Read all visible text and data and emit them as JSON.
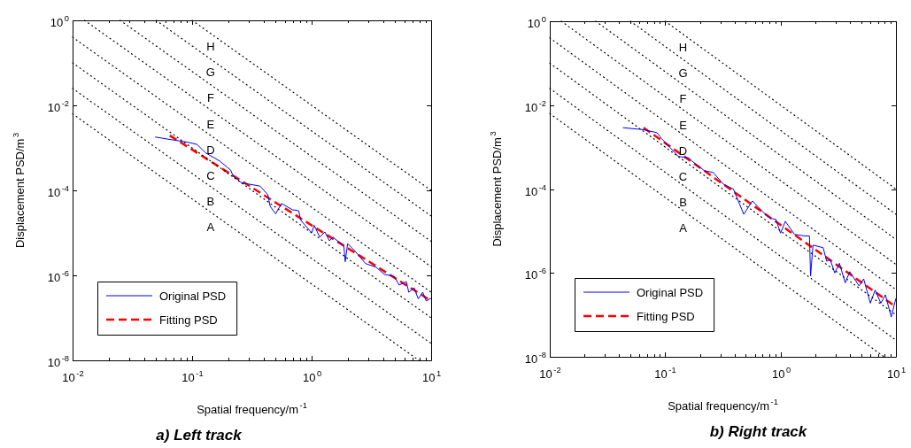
{
  "chart_data": [
    {
      "type": "line",
      "title": "a) Left track",
      "xlabel": "Spatial frequency/m$^{-1}$",
      "ylabel": "Displacement PSD/m$^{3}$",
      "log": "xy",
      "grid": false,
      "legend": "bottom left",
      "xlim": [
        0.01,
        10
      ],
      "ylim": [
        1e-08,
        1
      ],
      "xticks": [
        {
          "value": 0.01,
          "label": "10$^{-2}$"
        },
        {
          "value": 0.02,
          "label": null
        },
        {
          "value": 0.03,
          "label": null
        },
        {
          "value": 0.04,
          "label": null
        },
        {
          "value": 0.05,
          "label": null
        },
        {
          "value": 0.06,
          "label": null
        },
        {
          "value": 0.07,
          "label": null
        },
        {
          "value": 0.08,
          "label": null
        },
        {
          "value": 0.09,
          "label": null
        },
        {
          "value": 0.1,
          "label": "10$^{-1}$"
        },
        {
          "value": 0.2,
          "label": null
        },
        {
          "value": 0.3,
          "label": null
        },
        {
          "value": 0.4,
          "label": null
        },
        {
          "value": 0.5,
          "label": null
        },
        {
          "value": 0.6,
          "label": null
        },
        {
          "value": 0.7,
          "label": null
        },
        {
          "value": 0.8,
          "label": null
        },
        {
          "value": 0.9,
          "label": null
        },
        {
          "value": 1,
          "label": "10$^{0}$"
        },
        {
          "value": 2,
          "label": null
        },
        {
          "value": 3,
          "label": null
        },
        {
          "value": 4,
          "label": null
        },
        {
          "value": 5,
          "label": null
        },
        {
          "value": 6,
          "label": null
        },
        {
          "value": 7,
          "label": null
        },
        {
          "value": 8,
          "label": null
        },
        {
          "value": 9,
          "label": null
        },
        {
          "value": 10,
          "label": "10$^{1}$"
        }
      ],
      "yticks": [
        {
          "value": 1e-08,
          "label": "10$^{-8}$"
        },
        {
          "value": 1e-06,
          "label": "10$^{-6}$"
        },
        {
          "value": 0.0001,
          "label": "10$^{-4}$"
        },
        {
          "value": 0.01,
          "label": "10$^{-2}$"
        },
        {
          "value": 1,
          "label": "10$^{0}$"
        }
      ],
      "series": [
        {
          "color": "#000000",
          "line_style": "dotted",
          "x": [
            0.01,
            7.9
          ],
          "values": [
            0.0063,
            1e-08
          ]
        },
        {
          "color": "#000000",
          "line_style": "dotted",
          "x": [
            0.01,
            10
          ],
          "values": [
            0.025,
            2.5e-08
          ]
        },
        {
          "color": "#000000",
          "line_style": "dotted",
          "x": [
            0.01,
            10
          ],
          "values": [
            0.1,
            1e-07
          ]
        },
        {
          "color": "#000000",
          "line_style": "dotted",
          "x": [
            0.01,
            10
          ],
          "values": [
            0.4,
            4e-07
          ]
        },
        {
          "color": "#000000",
          "line_style": "dotted",
          "x": [
            0.0126,
            10
          ],
          "values": [
            1,
            1.6e-06
          ]
        },
        {
          "color": "#000000",
          "line_style": "dotted",
          "x": [
            0.025,
            10
          ],
          "values": [
            1,
            6.3e-06
          ]
        },
        {
          "color": "#000000",
          "line_style": "dotted",
          "x": [
            0.05,
            10
          ],
          "values": [
            1,
            2.5e-05
          ]
        },
        {
          "color": "#000000",
          "line_style": "dotted",
          "x": [
            0.1,
            10
          ],
          "values": [
            1,
            0.0001
          ]
        },
        {
          "name": "Original PSD",
          "color": "#0000ff",
          "line_style": "solid",
          "x": [
            0.049,
            0.063,
            0.093,
            0.11,
            0.13,
            0.17,
            0.21,
            0.22,
            0.26,
            0.3,
            0.37,
            0.43,
            0.45,
            0.5,
            0.56,
            0.69,
            0.78,
            0.81,
            1.0,
            1.05,
            1.17,
            1.29,
            1.41,
            1.51,
            1.86,
            1.91,
            2.0,
            2.29,
            2.82,
            3.47,
            4.07,
            4.9,
            5.4,
            6.2,
            6.5,
            7.2,
            7.8,
            8.5,
            9.1,
            10
          ],
          "values": [
            0.0018,
            0.0016,
            0.00135,
            0.0012,
            0.00076,
            0.00049,
            0.0003,
            0.00022,
            0.00015,
            0.00014,
            0.000126,
            7.9e-05,
            4.2e-05,
            2.8e-05,
            4.9e-05,
            3.5e-05,
            3.3e-05,
            2e-05,
            1e-05,
            1.5e-05,
            7.9e-06,
            1.05e-05,
            6.5e-06,
            7.9e-06,
            4.9e-06,
            2.1e-06,
            5.6e-06,
            3.8e-06,
            1.9e-06,
            1.55e-06,
            1.05e-06,
            9.5e-07,
            5.9e-07,
            7.1e-07,
            4e-07,
            5.1e-07,
            2.8e-07,
            4e-07,
            2.5e-07,
            2.9e-07
          ]
        },
        {
          "name": "Fitting PSD",
          "color": "#ff0000",
          "line_style": "dashed",
          "x": [
            0.065,
            10
          ],
          "values": [
            0.00195,
            2.5e-07
          ]
        }
      ],
      "annotations": [
        "H",
        "G",
        "F",
        "E",
        "D",
        "C",
        "B",
        "A"
      ]
    },
    {
      "type": "line",
      "title": "b) Right track",
      "xlabel": "Spatial frequency/m$^{-1}$",
      "ylabel": "Displacement PSD/m$^{3}$",
      "log": "xy",
      "grid": false,
      "legend": "bottom left",
      "xlim": [
        0.01,
        10
      ],
      "ylim": [
        1e-08,
        1
      ],
      "xticks": [
        {
          "value": 0.01,
          "label": "10$^{-2}$"
        },
        {
          "value": 0.02,
          "label": null
        },
        {
          "value": 0.03,
          "label": null
        },
        {
          "value": 0.04,
          "label": null
        },
        {
          "value": 0.05,
          "label": null
        },
        {
          "value": 0.06,
          "label": null
        },
        {
          "value": 0.07,
          "label": null
        },
        {
          "value": 0.08,
          "label": null
        },
        {
          "value": 0.09,
          "label": null
        },
        {
          "value": 0.1,
          "label": "10$^{-1}$"
        },
        {
          "value": 0.2,
          "label": null
        },
        {
          "value": 0.3,
          "label": null
        },
        {
          "value": 0.4,
          "label": null
        },
        {
          "value": 0.5,
          "label": null
        },
        {
          "value": 0.6,
          "label": null
        },
        {
          "value": 0.7,
          "label": null
        },
        {
          "value": 0.8,
          "label": null
        },
        {
          "value": 0.9,
          "label": null
        },
        {
          "value": 1,
          "label": "10$^{0}$"
        },
        {
          "value": 2,
          "label": null
        },
        {
          "value": 3,
          "label": null
        },
        {
          "value": 4,
          "label": null
        },
        {
          "value": 5,
          "label": null
        },
        {
          "value": 6,
          "label": null
        },
        {
          "value": 7,
          "label": null
        },
        {
          "value": 8,
          "label": null
        },
        {
          "value": 9,
          "label": null
        },
        {
          "value": 10,
          "label": "10$^{1}$"
        }
      ],
      "yticks": [
        {
          "value": 1e-08,
          "label": "10$^{-8}$"
        },
        {
          "value": 1e-06,
          "label": "10$^{-6}$"
        },
        {
          "value": 0.0001,
          "label": "10$^{-4}$"
        },
        {
          "value": 0.01,
          "label": "10$^{-2}$"
        },
        {
          "value": 1,
          "label": "10$^{0}$"
        }
      ],
      "series": [
        {
          "color": "#000000",
          "line_style": "dotted",
          "x": [
            0.01,
            7.9
          ],
          "values": [
            0.0063,
            1e-08
          ]
        },
        {
          "color": "#000000",
          "line_style": "dotted",
          "x": [
            0.01,
            10
          ],
          "values": [
            0.025,
            2.5e-08
          ]
        },
        {
          "color": "#000000",
          "line_style": "dotted",
          "x": [
            0.01,
            10
          ],
          "values": [
            0.1,
            1e-07
          ]
        },
        {
          "color": "#000000",
          "line_style": "dotted",
          "x": [
            0.01,
            10
          ],
          "values": [
            0.4,
            4e-07
          ]
        },
        {
          "color": "#000000",
          "line_style": "dotted",
          "x": [
            0.0126,
            10
          ],
          "values": [
            1,
            1.6e-06
          ]
        },
        {
          "color": "#000000",
          "line_style": "dotted",
          "x": [
            0.025,
            10
          ],
          "values": [
            1,
            6.3e-06
          ]
        },
        {
          "color": "#000000",
          "line_style": "dotted",
          "x": [
            0.05,
            10
          ],
          "values": [
            1,
            2.5e-05
          ]
        },
        {
          "color": "#000000",
          "line_style": "dotted",
          "x": [
            0.1,
            10
          ],
          "values": [
            1,
            0.0001
          ]
        },
        {
          "name": "Original PSD",
          "color": "#0000ff",
          "line_style": "solid",
          "x": [
            0.043,
            0.065,
            0.085,
            0.093,
            0.11,
            0.13,
            0.16,
            0.17,
            0.22,
            0.26,
            0.32,
            0.39,
            0.43,
            0.48,
            0.57,
            0.69,
            0.81,
            0.91,
            1.0,
            1.1,
            1.32,
            1.62,
            1.78,
            1.82,
            1.91,
            2.34,
            2.51,
            2.69,
            2.95,
            3.24,
            3.63,
            3.98,
            4.79,
            5.25,
            6.0,
            6.6,
            7.4,
            8.1,
            9.1,
            10
          ],
          "values": [
            0.0029,
            0.0026,
            0.0022,
            0.0016,
            0.00098,
            0.0006,
            0.00055,
            0.00047,
            0.00027,
            0.00025,
            0.00013,
            0.0001,
            5.2e-05,
            2.5e-05,
            5.2e-05,
            3e-05,
            2e-05,
            1.9e-05,
            8.9e-06,
            1.7e-05,
            8.3e-06,
            7.6e-06,
            7.6e-06,
            8.5e-07,
            4.6e-06,
            4e-06,
            1.9e-06,
            2.1e-06,
            1e-06,
            1.7e-06,
            5.8e-07,
            1.07e-06,
            4.9e-07,
            7.2e-07,
            1.9e-07,
            3.9e-07,
            1.9e-07,
            3e-07,
            8.9e-08,
            2.5e-07
          ]
        },
        {
          "name": "Fitting PSD",
          "color": "#ff0000",
          "line_style": "dashed",
          "x": [
            0.065,
            10
          ],
          "values": [
            0.0029,
            1.55e-07
          ]
        }
      ],
      "annotations": [
        "H",
        "G",
        "F",
        "E",
        "D",
        "C",
        "B",
        "A"
      ]
    }
  ]
}
